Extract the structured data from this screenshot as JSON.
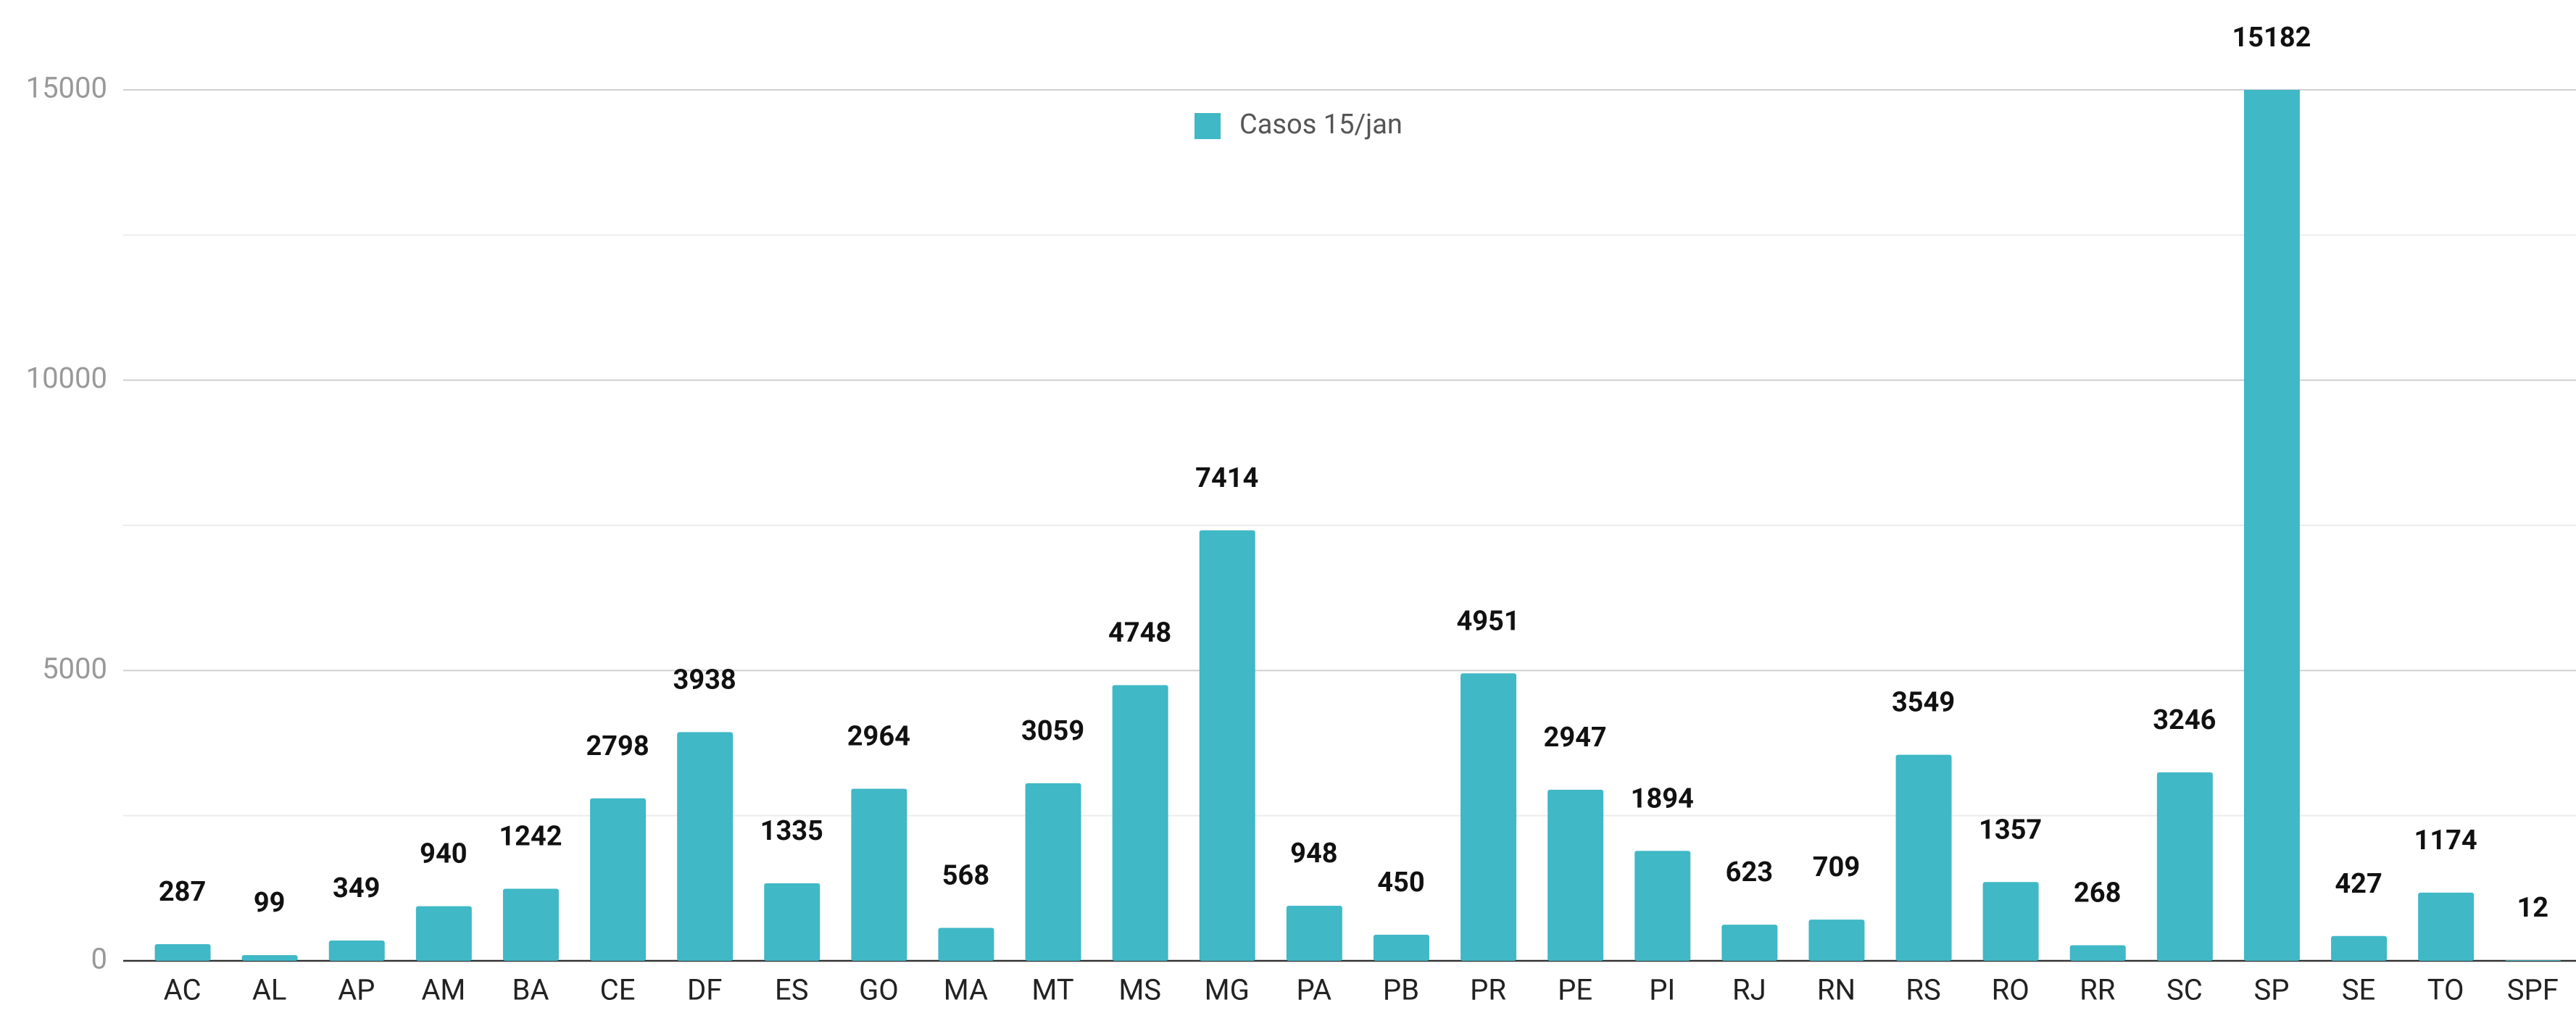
{
  "chart_data": {
    "type": "bar",
    "categories": [
      "AC",
      "AL",
      "AP",
      "AM",
      "BA",
      "CE",
      "DF",
      "ES",
      "GO",
      "MA",
      "MT",
      "MS",
      "MG",
      "PA",
      "PB",
      "PR",
      "PE",
      "PI",
      "RJ",
      "RN",
      "RS",
      "RO",
      "RR",
      "SC",
      "SP",
      "SE",
      "TO",
      "SPF"
    ],
    "series": [
      {
        "name": "Casos 15/jan",
        "color": "#40b8c6",
        "values": [
          287,
          99,
          349,
          940,
          1242,
          2798,
          3938,
          1335,
          2964,
          568,
          3059,
          4748,
          7414,
          948,
          450,
          4951,
          2947,
          1894,
          623,
          709,
          3549,
          1357,
          268,
          3246,
          15182,
          427,
          1174,
          12
        ]
      }
    ],
    "ylim": [
      0,
      15000
    ],
    "yticks": [
      0,
      5000,
      10000,
      15000
    ],
    "minor_yticks": [
      2500,
      7500,
      12500
    ],
    "grid": true,
    "legend": "top"
  }
}
